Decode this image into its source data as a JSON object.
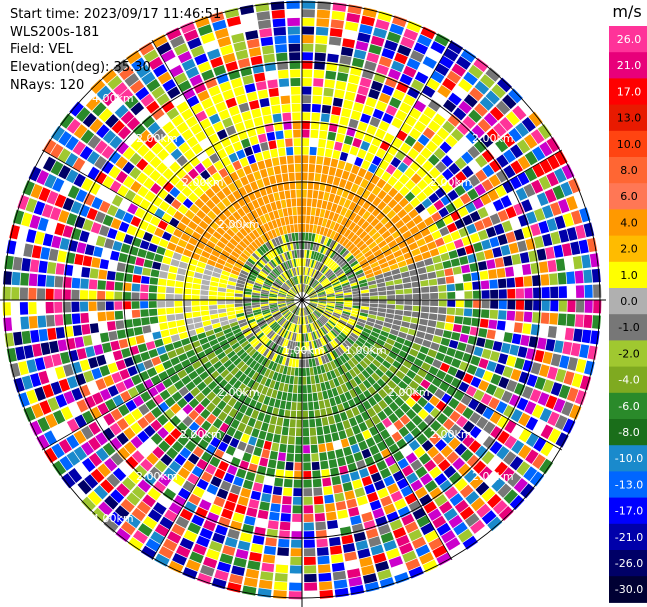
{
  "header": {
    "start_time_label": "Start time: 2023/09/17 11:46:51",
    "instrument": "WLS200s-181",
    "field": "Field: VEL",
    "elevation": "Elevation(deg): 35.30",
    "nrays": "NRays: 120"
  },
  "colorbar": {
    "unit": "m/s",
    "ticks": [
      "26.0",
      "21.0",
      "17.0",
      "13.0",
      "10.0",
      "8.0",
      "6.0",
      "4.0",
      "2.0",
      "1.0",
      "0.0",
      "-1.0",
      "-2.0",
      "-4.0",
      "-6.0",
      "-8.0",
      "-10.0",
      "-13.0",
      "-17.0",
      "-21.0",
      "-26.0",
      "-30.0"
    ],
    "colors": [
      "#ff3399",
      "#e8007a",
      "#ff0000",
      "#e81a00",
      "#ff4411",
      "#ff6633",
      "#ff7755",
      "#ff9900",
      "#ffbb00",
      "#ffff00",
      "#b0b0b0",
      "#777777",
      "#a0c830",
      "#7faa20",
      "#2a8a2a",
      "#1a6e1a",
      "#1a8acc",
      "#0066ff",
      "#0000ff",
      "#0000aa",
      "#000066",
      "#000033"
    ]
  },
  "chart_data": {
    "type": "heatmap",
    "projection": "polar PPI",
    "field": "VEL",
    "unit": "m/s",
    "nrays": 120,
    "range_ring_labels": [
      "1.00km",
      "2.00km"
    ],
    "ring_labels_outer": [
      "2.00km",
      "4.00km"
    ],
    "value_range": [
      -30.0,
      26.0
    ]
  }
}
